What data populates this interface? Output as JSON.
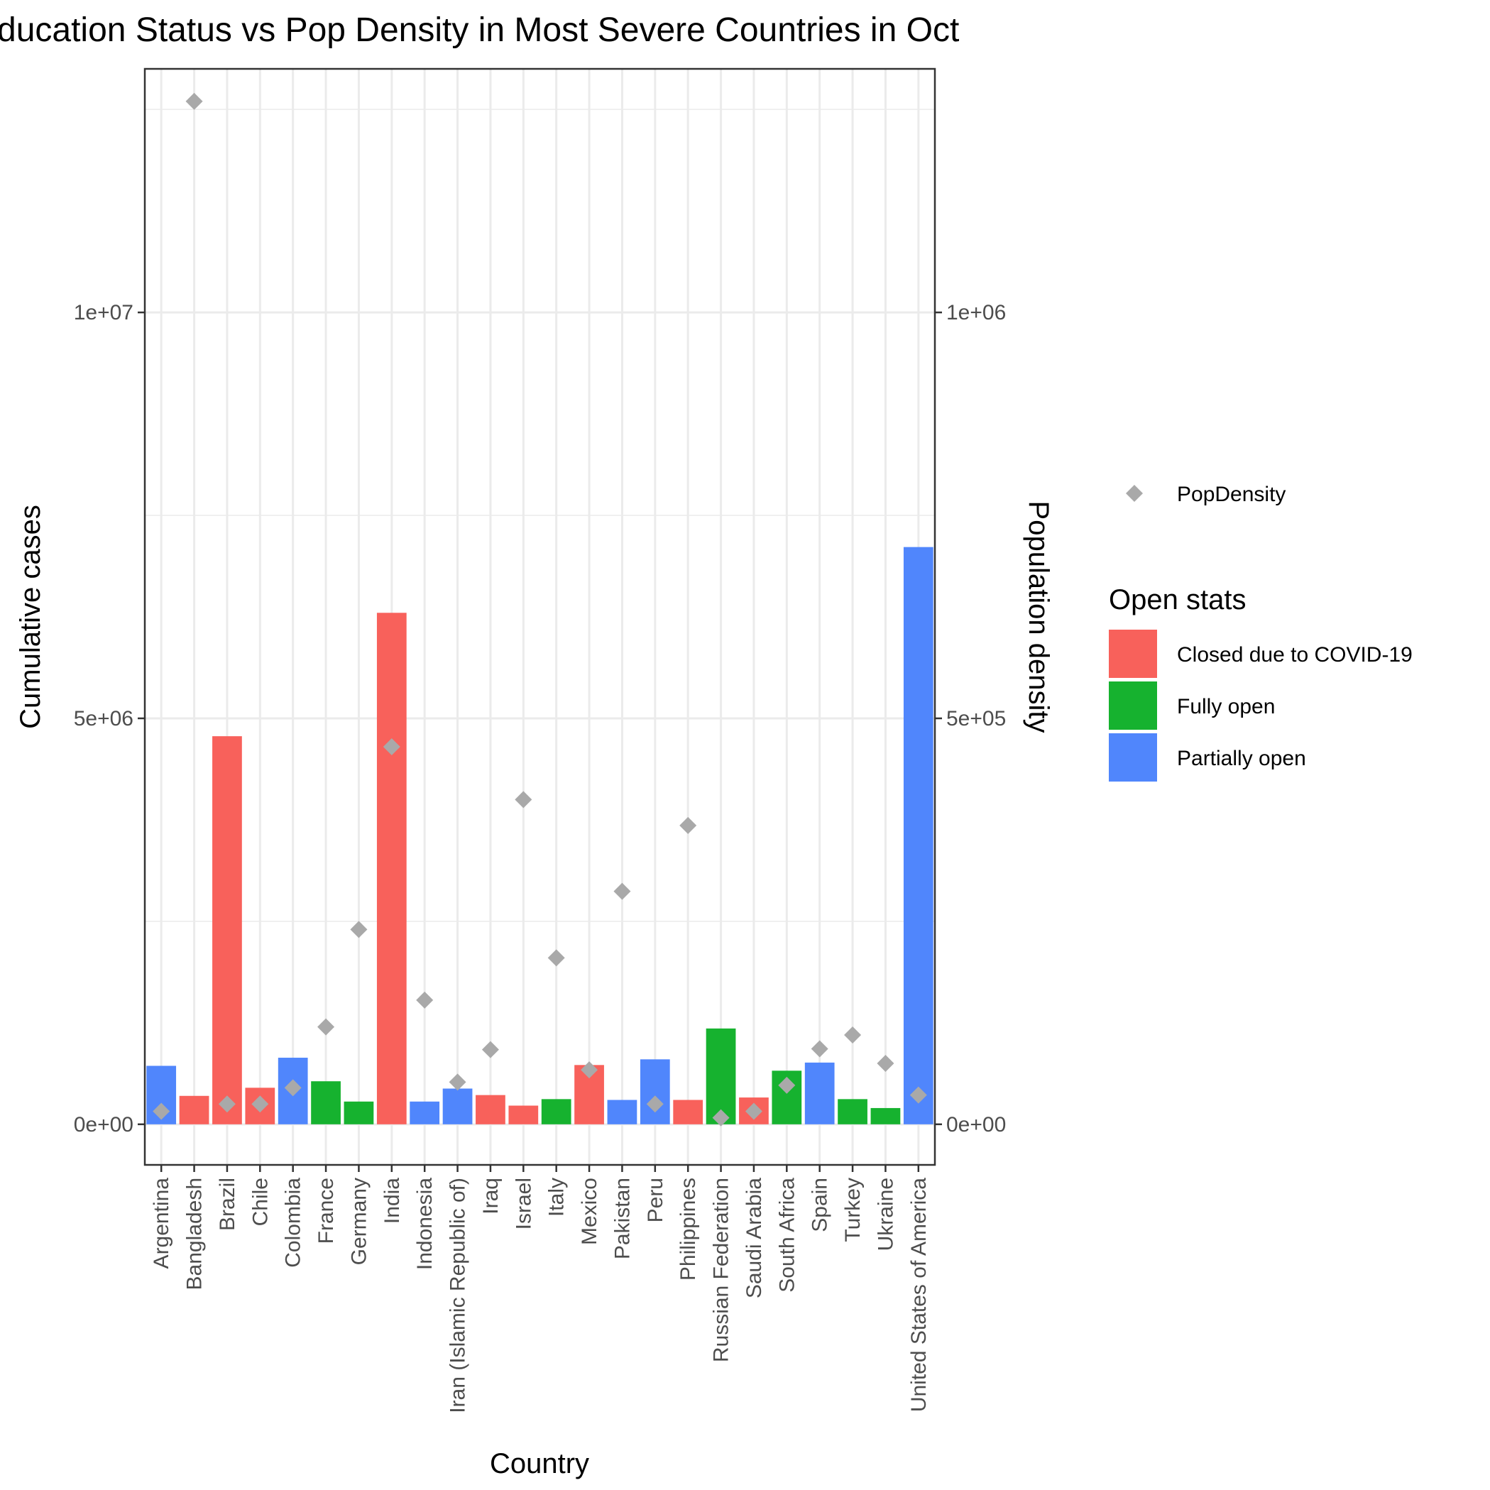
{
  "chart_data": {
    "type": "bar",
    "title": "ducation Status vs Pop Density in Most Severe Countries in Oct",
    "xlabel": "Country",
    "ylabel": "Cumulative cases",
    "y2label": "Population density",
    "categories": [
      "Argentina",
      "Bangladesh",
      "Brazil",
      "Chile",
      "Colombia",
      "France",
      "Germany",
      "India",
      "Indonesia",
      "Iran (Islamic Republic of)",
      "Iraq",
      "Israel",
      "Italy",
      "Mexico",
      "Pakistan",
      "Peru",
      "Philippines",
      "Russian Federation",
      "Saudi Arabia",
      "South Africa",
      "Spain",
      "Turkey",
      "Ukraine",
      "United States of America"
    ],
    "values": [
      720000,
      350000,
      4780000,
      450000,
      820000,
      530000,
      280000,
      6300000,
      280000,
      440000,
      360000,
      230000,
      310000,
      730000,
      300000,
      800000,
      300000,
      1180000,
      330000,
      660000,
      760000,
      310000,
      200000,
      7110000
    ],
    "status": [
      "Partially open",
      "Closed due to COVID-19",
      "Closed due to COVID-19",
      "Closed due to COVID-19",
      "Partially open",
      "Fully open",
      "Fully open",
      "Closed due to COVID-19",
      "Partially open",
      "Partially open",
      "Closed due to COVID-19",
      "Closed due to COVID-19",
      "Fully open",
      "Closed due to COVID-19",
      "Partially open",
      "Partially open",
      "Closed due to COVID-19",
      "Fully open",
      "Closed due to COVID-19",
      "Fully open",
      "Partially open",
      "Fully open",
      "Fully open",
      "Partially open"
    ],
    "pop_density": [
      16000,
      1260000,
      25000,
      25000,
      45000,
      120000,
      240000,
      465000,
      153000,
      52000,
      92000,
      400000,
      205000,
      67000,
      287000,
      25000,
      368000,
      8000,
      16000,
      48000,
      93000,
      110000,
      75000,
      36000
    ],
    "ylim": [
      -500000,
      13000000
    ],
    "y2lim": [
      -50000,
      1300000
    ],
    "y_ticks": [
      0,
      5000000,
      10000000
    ],
    "y_tick_labels": [
      "0e+00",
      "5e+06",
      "1e+07"
    ],
    "y2_ticks": [
      0,
      500000,
      1000000
    ],
    "y2_tick_labels": [
      "0e+00",
      "5e+05",
      "1e+06"
    ],
    "grid": true,
    "legend": {
      "placement": "right",
      "point_label": "PopDensity",
      "point_color": "#a9a9a9",
      "fill_title": "Open stats",
      "fill_entries": [
        {
          "label": "Closed due to COVID-19",
          "color": "#f8615b"
        },
        {
          "label": "Fully open",
          "color": "#16b22f"
        },
        {
          "label": "Partially open",
          "color": "#5086fc"
        }
      ]
    }
  }
}
